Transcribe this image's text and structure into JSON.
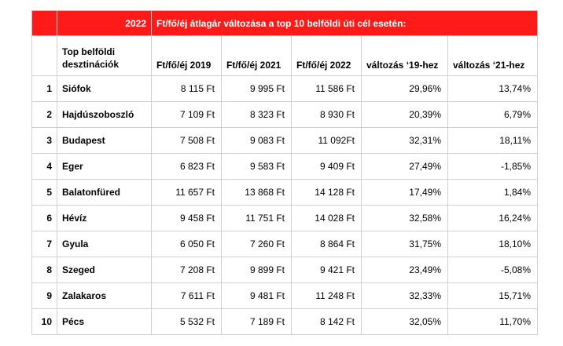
{
  "title_row": {
    "year": "2022",
    "caption": "Ft/fő/éj átlagár változása a top 10 belföldi úti cél esetén:"
  },
  "header": {
    "destination": "Top belföldi desztinációk",
    "price_2019": "Ft/fő/éj 2019",
    "price_2021": "Ft/fő/éj 2021",
    "price_2022": "Ft/fő/éj 2022",
    "change_19": "változás ‘19-hez",
    "change_21": "változás ‘21-hez"
  },
  "rows": [
    {
      "rank": "1",
      "city": "Siófok",
      "p2019": "8 115 Ft",
      "p2021": "9 995 Ft",
      "p2022": "11 586 Ft",
      "c19": "29,96%",
      "c21": "13,74%"
    },
    {
      "rank": "2",
      "city": "Hajdúszoboszló",
      "p2019": "7 109 Ft",
      "p2021": "8 323 Ft",
      "p2022": "8 930 Ft",
      "c19": "20,39%",
      "c21": "6,79%"
    },
    {
      "rank": "3",
      "city": "Budapest",
      "p2019": "7 508 Ft",
      "p2021": "9 083 Ft",
      "p2022": "11 092Ft",
      "c19": "32,31%",
      "c21": "18,11%"
    },
    {
      "rank": "4",
      "city": "Eger",
      "p2019": "6 823 Ft",
      "p2021": "9 583 Ft",
      "p2022": "9 409 Ft",
      "c19": "27,49%",
      "c21": "-1,85%"
    },
    {
      "rank": "5",
      "city": "Balatonfüred",
      "p2019": "11 657 Ft",
      "p2021": "13 868 Ft",
      "p2022": "14 128 Ft",
      "c19": "17,49%",
      "c21": "1,84%"
    },
    {
      "rank": "6",
      "city": "Hévíz",
      "p2019": "9 458 Ft",
      "p2021": "11 751 Ft",
      "p2022": "14 028 Ft",
      "c19": "32,58%",
      "c21": "16,24%"
    },
    {
      "rank": "7",
      "city": "Gyula",
      "p2019": "6 050 Ft",
      "p2021": "7 260 Ft",
      "p2022": "8 864 Ft",
      "c19": "31,75%",
      "c21": "18,10%"
    },
    {
      "rank": "8",
      "city": "Szeged",
      "p2019": "7 208 Ft",
      "p2021": "9 899 Ft",
      "p2022": "9 421 Ft",
      "c19": "23,49%",
      "c21": "-5,08%"
    },
    {
      "rank": "9",
      "city": "Zalakaros",
      "p2019": "7 611 Ft",
      "p2021": "9 481 Ft",
      "p2022": "11 248 Ft",
      "c19": "32,33%",
      "c21": "15,71%"
    },
    {
      "rank": "10",
      "city": "Pécs",
      "p2019": "5 532 Ft",
      "p2021": "7 189 Ft",
      "p2022": "8 142 Ft",
      "c19": "32,05%",
      "c21": "11,70%"
    }
  ]
}
